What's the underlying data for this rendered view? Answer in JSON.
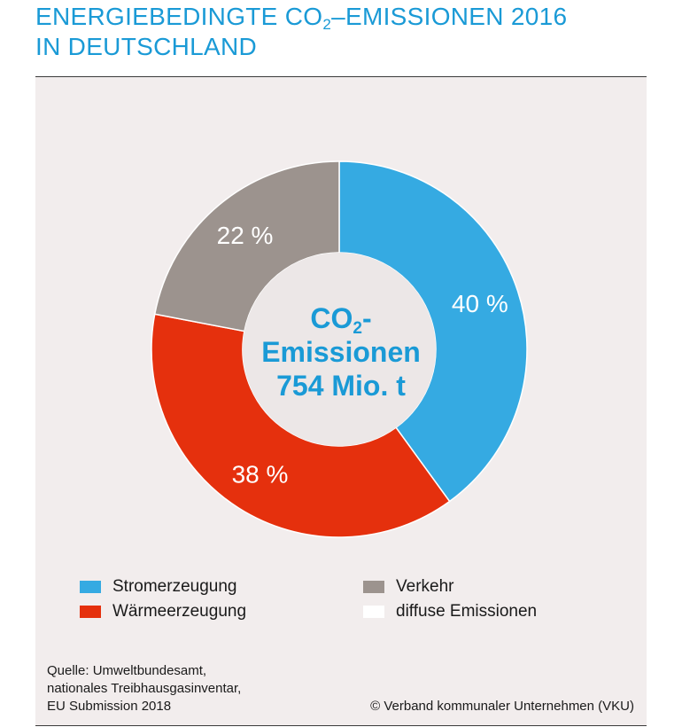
{
  "header": {
    "title_line1_pre": "ENERGIEBEDINGTE CO",
    "title_line1_sub": "2",
    "title_line1_post": "–EMISSIONEN 2016",
    "title_line2": "IN DEUTSCHLAND"
  },
  "center": {
    "line1_pre": "CO",
    "line1_sub": "2",
    "line1_post": "-",
    "line2": "Emissionen",
    "line3": "754 Mio. t"
  },
  "chart_data": {
    "type": "pie",
    "variant": "donut",
    "categories": [
      "Stromerzeugung",
      "Wärmeerzeugung",
      "Verkehr",
      "diffuse Emissionen"
    ],
    "values": [
      40,
      38,
      22,
      0
    ],
    "value_labels": [
      "40 %",
      "38 %",
      "22 %",
      ""
    ],
    "colors": [
      "#35aae2",
      "#e5300d",
      "#9c938e",
      "#ffffff"
    ],
    "start": "12 o'clock",
    "direction": "clockwise",
    "legend_placement": "bottom"
  },
  "legend": {
    "items": [
      {
        "label": "Stromerzeugung",
        "color": "#35aae2"
      },
      {
        "label": "Verkehr",
        "color": "#9c938e"
      },
      {
        "label": "Wärmeerzeugung",
        "color": "#e5300d"
      },
      {
        "label": "diffuse Emissionen",
        "color": "#ffffff"
      }
    ]
  },
  "footer": {
    "source_line1": "Quelle: Umweltbundesamt,",
    "source_line2": "nationales Treibhausgasinventar,",
    "source_line3": "EU Submission 2018",
    "copyright": "© Verband kommunaler Unternehmen (VKU)"
  }
}
